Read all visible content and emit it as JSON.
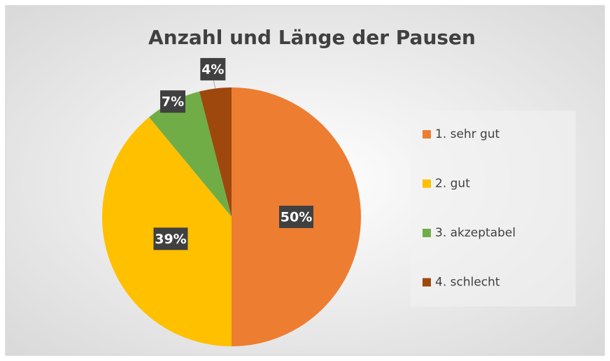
{
  "chart_data": {
    "type": "pie",
    "title": "Anzahl und Länge der Pausen",
    "categories": [
      "1. sehr gut",
      "2. gut",
      "3. akzeptabel",
      "4. schlecht"
    ],
    "values": [
      50,
      39,
      7,
      4
    ],
    "value_labels": [
      "50%",
      "39%",
      "7%",
      "4%"
    ],
    "colors": [
      "#ED7D31",
      "#FFC000",
      "#70AD47",
      "#9E480E"
    ],
    "legend": "right"
  }
}
